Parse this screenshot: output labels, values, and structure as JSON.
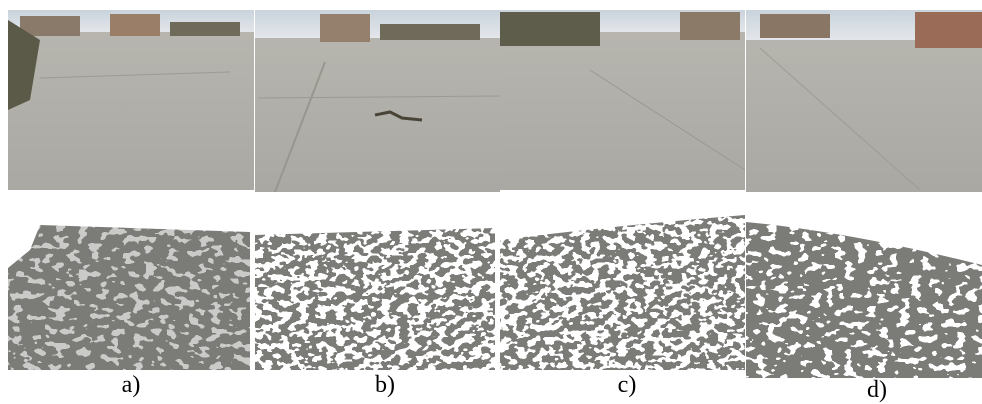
{
  "panels": [
    {
      "label": "a)"
    },
    {
      "label": "b)"
    },
    {
      "label": "c)"
    },
    {
      "label": "d)"
    }
  ]
}
